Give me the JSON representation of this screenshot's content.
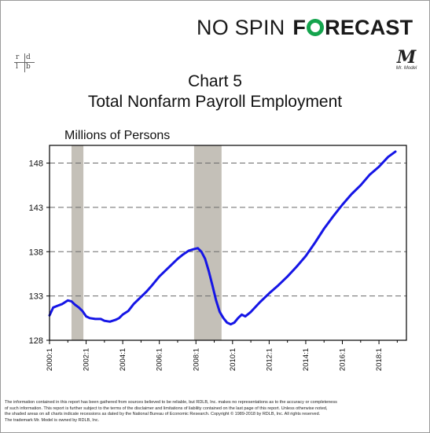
{
  "brand": {
    "left": "NO SPIN",
    "right_pre": "F",
    "right_post": "RECAST"
  },
  "badges": {
    "rdlb": [
      "r",
      "d",
      "l",
      "b"
    ],
    "mr_model_letter": "M",
    "mr_model_caption": "Mr. Model"
  },
  "title": {
    "line1": "Chart 5",
    "line2": "Total Nonfarm Payroll Employment"
  },
  "units_label": "Millions of Persons",
  "colors": {
    "line": "#1515e6",
    "recession": "#c4c0b8",
    "plot_border": "#000000",
    "gridline": "#6a6a6a",
    "brand_accent": "#14a44d"
  },
  "chart_data": {
    "type": "line",
    "title": "Chart 5 Total Nonfarm Payroll Employment",
    "ylabel": "Millions of Persons",
    "xlabel": "",
    "ylim": [
      128,
      150
    ],
    "xlim": [
      2000.0,
      2019.5
    ],
    "yticks": [
      128,
      133,
      138,
      143,
      148
    ],
    "xticks": [
      {
        "x": 2000.0,
        "label": "2000:1"
      },
      {
        "x": 2002.0,
        "label": "2002:1"
      },
      {
        "x": 2004.0,
        "label": "2004:1"
      },
      {
        "x": 2006.0,
        "label": "2006:1"
      },
      {
        "x": 2008.0,
        "label": "2008:1"
      },
      {
        "x": 2010.0,
        "label": "2010:1"
      },
      {
        "x": 2012.0,
        "label": "2012:1"
      },
      {
        "x": 2014.0,
        "label": "2014:1"
      },
      {
        "x": 2016.0,
        "label": "2016:1"
      },
      {
        "x": 2018.0,
        "label": "2018:1"
      }
    ],
    "grid": "horizontal dashed",
    "recessions": [
      {
        "start": 2001.2,
        "end": 2001.85
      },
      {
        "start": 2007.9,
        "end": 2009.4
      }
    ],
    "series": [
      {
        "x": [
          2000.0,
          2000.2,
          2000.45,
          2000.7,
          2001.0,
          2001.2,
          2001.4,
          2001.6,
          2001.8,
          2002.0,
          2002.2,
          2002.5,
          2002.8,
          2003.0,
          2003.3,
          2003.6,
          2003.8,
          2004.0,
          2004.3,
          2004.6,
          2005.0,
          2005.3,
          2005.6,
          2006.0,
          2006.3,
          2006.6,
          2007.0,
          2007.3,
          2007.6,
          2007.9,
          2008.1,
          2008.3,
          2008.5,
          2008.7,
          2008.9,
          2009.1,
          2009.3,
          2009.5,
          2009.7,
          2009.9,
          2010.1,
          2010.3,
          2010.5,
          2010.7,
          2011.0,
          2011.5,
          2012.0,
          2012.5,
          2013.0,
          2013.5,
          2014.0,
          2014.5,
          2015.0,
          2015.5,
          2016.0,
          2016.5,
          2017.0,
          2017.5,
          2018.0,
          2018.5,
          2018.9
        ],
        "values": [
          130.8,
          131.7,
          131.9,
          132.1,
          132.5,
          132.4,
          132.0,
          131.7,
          131.3,
          130.7,
          130.5,
          130.4,
          130.4,
          130.2,
          130.1,
          130.3,
          130.5,
          130.9,
          131.3,
          132.1,
          132.9,
          133.5,
          134.2,
          135.2,
          135.8,
          136.4,
          137.2,
          137.7,
          138.1,
          138.3,
          138.4,
          138.0,
          137.2,
          135.8,
          134.2,
          132.5,
          131.2,
          130.5,
          130.0,
          129.8,
          130.0,
          130.5,
          130.9,
          130.7,
          131.2,
          132.3,
          133.3,
          134.2,
          135.2,
          136.3,
          137.5,
          139.0,
          140.6,
          142.0,
          143.3,
          144.5,
          145.5,
          146.7,
          147.6,
          148.7,
          149.3
        ]
      }
    ]
  },
  "footer": {
    "line1": "The information contained in this report has been gathered from sources believed to be reliable, but RDLB, Inc. makes no representations as to the accuracy or completeness",
    "line2": "of such information. This report is further subject to the terms of the disclaimer and limitations of liability contained on the last page of this report. Unless otherwise noted,",
    "line3": "the shaded areas on all charts indicate recessions as dated by the National Bureau of Economic Research. Copyright © 1989-2018 by RDLB, Inc. All rights reserved.",
    "line4": "The trademark Mr. Model is owned by RDLB, Inc."
  }
}
